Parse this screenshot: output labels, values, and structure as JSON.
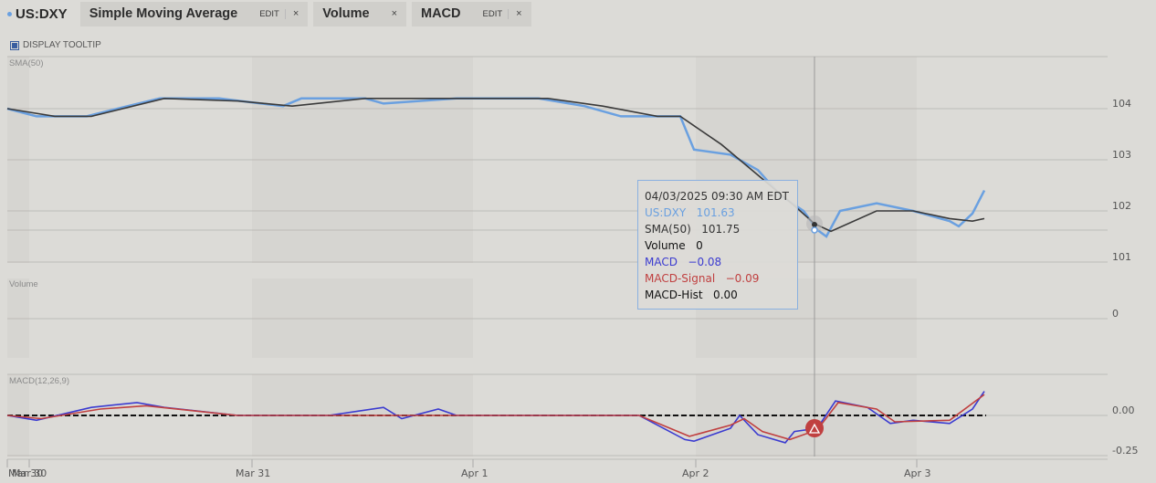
{
  "header": {
    "symbol": "US:DXY",
    "indicators": [
      {
        "name": "Simple Moving Average",
        "edit": "EDIT",
        "close": "×"
      },
      {
        "name": "Volume",
        "close": "×"
      },
      {
        "name": "MACD",
        "edit": "EDIT",
        "close": "×"
      }
    ],
    "display_tooltip": "DISPLAY TOOLTIP"
  },
  "panels": {
    "price_label": "SMA(50)",
    "volume_label": "Volume",
    "macd_label": "MACD(12,26,9)"
  },
  "tooltip": {
    "datetime": "04/03/2025 09:30 AM EDT",
    "symbol_line": "US:DXY   101.63",
    "sma_line": "SMA(50)   101.75",
    "volume_line": "Volume   0",
    "macd_line": "MACD   −0.08",
    "signal_line": "MACD-Signal   −0.09",
    "hist_line": "MACD-Hist   0.00"
  },
  "colors": {
    "price": "#6aa0e0",
    "sma": "#3a3a3a",
    "macd": "#3b3bd0",
    "signal": "#c04040",
    "hist": "#111111"
  },
  "chart_data": {
    "type": "line",
    "title": "US:DXY",
    "x_ticks": [
      "Mar 30",
      "Mar 31",
      "Apr 1",
      "Apr 2",
      "Apr 3"
    ],
    "x_tick_overlap_label": "Mar 30",
    "price_panel": {
      "y_ticks": [
        "104",
        "103",
        "102",
        "101"
      ],
      "ylim": [
        100.6,
        104.9
      ],
      "series": [
        {
          "name": "US:DXY",
          "points": [
            [
              8,
              104.0
            ],
            [
              40,
              103.85
            ],
            [
              95,
              103.85
            ],
            [
              140,
              104.05
            ],
            [
              175,
              104.2
            ],
            [
              240,
              104.2
            ],
            [
              310,
              104.05
            ],
            [
              330,
              104.2
            ],
            [
              400,
              104.2
            ],
            [
              420,
              104.1
            ],
            [
              500,
              104.2
            ],
            [
              590,
              104.2
            ],
            [
              640,
              104.05
            ],
            [
              680,
              103.85
            ],
            [
              700,
              103.85
            ],
            [
              745,
              103.85
            ],
            [
              760,
              103.2
            ],
            [
              800,
              103.1
            ],
            [
              830,
              102.8
            ],
            [
              855,
              102.3
            ],
            [
              880,
              102.0
            ],
            [
              895,
              101.63
            ],
            [
              905,
              101.5
            ],
            [
              920,
              102.0
            ],
            [
              960,
              102.15
            ],
            [
              1000,
              102.0
            ],
            [
              1040,
              101.8
            ],
            [
              1050,
              101.7
            ],
            [
              1065,
              101.95
            ],
            [
              1078,
              102.4
            ]
          ]
        },
        {
          "name": "SMA(50)",
          "points": [
            [
              8,
              104.0
            ],
            [
              60,
              103.85
            ],
            [
              100,
              103.85
            ],
            [
              180,
              104.2
            ],
            [
              260,
              104.15
            ],
            [
              320,
              104.05
            ],
            [
              400,
              104.2
            ],
            [
              480,
              104.2
            ],
            [
              600,
              104.2
            ],
            [
              660,
              104.05
            ],
            [
              720,
              103.85
            ],
            [
              745,
              103.85
            ],
            [
              790,
              103.3
            ],
            [
              830,
              102.7
            ],
            [
              870,
              102.1
            ],
            [
              892,
              101.75
            ],
            [
              910,
              101.6
            ],
            [
              960,
              102.0
            ],
            [
              1000,
              102.0
            ],
            [
              1040,
              101.85
            ],
            [
              1065,
              101.8
            ],
            [
              1078,
              101.85
            ]
          ]
        }
      ]
    },
    "volume_panel": {
      "y_ticks": [
        "0"
      ],
      "values": [
        0
      ]
    },
    "macd_panel": {
      "y_ticks": [
        "0.00",
        "-0.25"
      ],
      "ylim": [
        -0.3,
        0.25
      ],
      "series": [
        {
          "name": "MACD",
          "points": [
            [
              8,
              0
            ],
            [
              40,
              -0.03
            ],
            [
              100,
              0.05
            ],
            [
              150,
              0.08
            ],
            [
              180,
              0.05
            ],
            [
              260,
              0
            ],
            [
              360,
              0
            ],
            [
              420,
              0.05
            ],
            [
              440,
              -0.02
            ],
            [
              480,
              0.04
            ],
            [
              500,
              0
            ],
            [
              700,
              0
            ],
            [
              750,
              -0.15
            ],
            [
              760,
              -0.16
            ],
            [
              800,
              -0.08
            ],
            [
              810,
              0
            ],
            [
              830,
              -0.12
            ],
            [
              860,
              -0.17
            ],
            [
              870,
              -0.1
            ],
            [
              895,
              -0.08
            ],
            [
              915,
              0.09
            ],
            [
              950,
              0.05
            ],
            [
              975,
              -0.05
            ],
            [
              1000,
              -0.03
            ],
            [
              1040,
              -0.05
            ],
            [
              1065,
              0.04
            ],
            [
              1078,
              0.15
            ]
          ]
        },
        {
          "name": "MACD-Signal",
          "points": [
            [
              8,
              0
            ],
            [
              45,
              -0.02
            ],
            [
              110,
              0.04
            ],
            [
              160,
              0.06
            ],
            [
              260,
              0
            ],
            [
              360,
              0
            ],
            [
              500,
              0
            ],
            [
              700,
              0
            ],
            [
              755,
              -0.13
            ],
            [
              800,
              -0.06
            ],
            [
              815,
              -0.02
            ],
            [
              835,
              -0.1
            ],
            [
              865,
              -0.15
            ],
            [
              895,
              -0.09
            ],
            [
              918,
              0.08
            ],
            [
              960,
              0.04
            ],
            [
              980,
              -0.04
            ],
            [
              1040,
              -0.03
            ],
            [
              1078,
              0.13
            ]
          ]
        }
      ],
      "histogram_value_at_cursor": 0.0
    },
    "cursor": {
      "x_label": "04/03/2025 09:30 AM EDT"
    }
  }
}
